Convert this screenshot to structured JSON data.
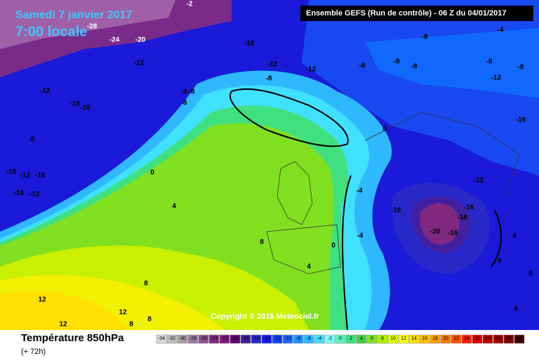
{
  "header": {
    "date": "Samedi 7 janvier 2017",
    "time": "7:00 locale",
    "run": "Ensemble GEFS  (Run de contrôle)  - 06 Z du 04/01/2017",
    "copyright": "Copyright © 2016 Meteociel.fr"
  },
  "footer": {
    "title": "Température 850hPa",
    "lead": "(+ 72h)"
  },
  "legend": {
    "labels": [
      -34,
      -32,
      -30,
      -28,
      -26,
      -24,
      -22,
      -20,
      -18,
      -16,
      -14,
      -12,
      -10,
      -8,
      -6,
      -4,
      -2,
      0,
      2,
      4,
      6,
      8,
      10,
      12,
      14,
      16,
      18,
      20,
      22,
      24,
      26,
      28,
      30,
      32,
      34
    ],
    "colors": [
      "#d8d8d8",
      "#c0c0c0",
      "#a8a0a8",
      "#a080a0",
      "#905090",
      "#802880",
      "#801880",
      "#600070",
      "#4020a0",
      "#2828c8",
      "#1818f0",
      "#1040ff",
      "#1868ff",
      "#2090ff",
      "#30b8ff",
      "#40e0ff",
      "#80ffff",
      "#60f0c0",
      "#40e080",
      "#40d040",
      "#80e020",
      "#b0f000",
      "#e0ff00",
      "#ffff00",
      "#ffe000",
      "#ffc000",
      "#ffa000",
      "#ff7800",
      "#ff5000",
      "#ff2000",
      "#e00000",
      "#c00000",
      "#a00000",
      "#800000",
      "#400000"
    ]
  },
  "contours": [
    "-24",
    "-20",
    "-16",
    "-12",
    "-12",
    "-12",
    "-12",
    "-8",
    "-8",
    "-8",
    "-8",
    "-16",
    "-16",
    "-8",
    "-16",
    "-12",
    "-16",
    "-16",
    "-12",
    "0",
    "4",
    "8",
    "8",
    "12",
    "12",
    "12",
    "8",
    "8",
    "0",
    "4",
    "-4",
    "-4",
    "0",
    "-16",
    "-16",
    "-20",
    "-16",
    "-12",
    "-16",
    "-12",
    "-8",
    "-4",
    "-8",
    "-8",
    "-8",
    "-8",
    "-8",
    "0",
    "4",
    "8",
    "4",
    "-16",
    "-28",
    "-2"
  ]
}
